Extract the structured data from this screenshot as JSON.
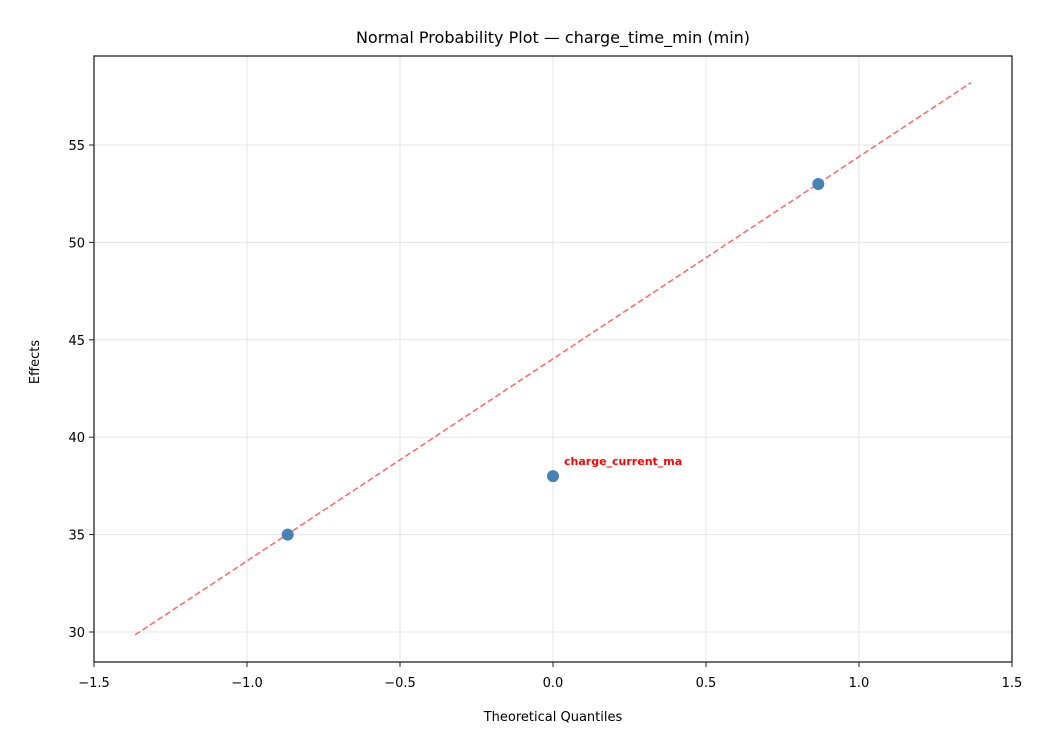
{
  "chart_data": {
    "type": "scatter",
    "title": "Normal Probability Plot — charge_time_min (min)",
    "xlabel": "Theoretical Quantiles",
    "ylabel": "Effects",
    "xlim": [
      -1.5,
      1.5
    ],
    "ylim": [
      28.4,
      59.5
    ],
    "xticks": [
      -1.5,
      -1.0,
      -0.5,
      0.0,
      0.5,
      1.0,
      1.5
    ],
    "xtick_labels": [
      "−1.5",
      "−1.0",
      "−0.5",
      "0.0",
      "0.5",
      "1.0",
      "1.5"
    ],
    "yticks": [
      30,
      35,
      40,
      45,
      50,
      55
    ],
    "ytick_labels": [
      "30",
      "35",
      "40",
      "45",
      "50",
      "55"
    ],
    "grid": true,
    "points": [
      {
        "x": -0.867,
        "y": 35.0,
        "label": ""
      },
      {
        "x": 0.0,
        "y": 38.0,
        "label": "charge_current_ma"
      },
      {
        "x": 0.867,
        "y": 53.0,
        "label": ""
      }
    ],
    "reference_line": {
      "x": [
        -1.366,
        1.366
      ],
      "y": [
        29.85,
        58.2
      ],
      "style": "dashed"
    },
    "colors": {
      "points": "#4682b4",
      "line": "#ff6666",
      "annotation": "#ff0000",
      "grid": "#e6e6e6"
    }
  }
}
